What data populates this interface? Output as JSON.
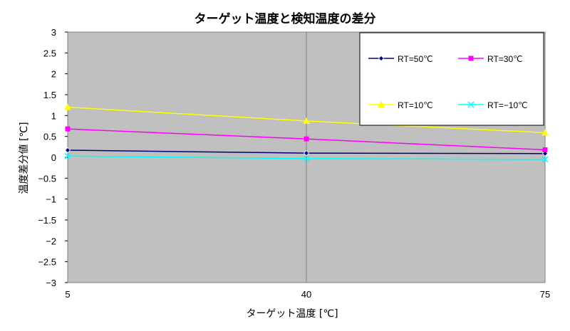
{
  "chart_data": {
    "type": "line",
    "title": "ターゲット温度と検知温度の差分",
    "xlabel": "ターゲット温度 [℃]",
    "ylabel": "温度差分値 [℃]",
    "categories": [
      "5",
      "40",
      "75"
    ],
    "ylim": [
      -3,
      3
    ],
    "yticks": [
      "3",
      "2.5",
      "2",
      "1.5",
      "1",
      "0.5",
      "0",
      "−0.5",
      "−1",
      "−1.5",
      "−2",
      "−2.5",
      "−3"
    ],
    "grid": true,
    "legend_position": "top-right",
    "plot_background": "#c0c0c0",
    "series": [
      {
        "name": "RT=50℃",
        "values": [
          0.17,
          0.1,
          0.09
        ],
        "color": "#000080",
        "marker": "diamond"
      },
      {
        "name": "RT=30℃",
        "values": [
          0.68,
          0.44,
          0.18
        ],
        "color": "#ff00ff",
        "marker": "square"
      },
      {
        "name": "RT=10℃",
        "values": [
          1.2,
          0.87,
          0.59
        ],
        "color": "#ffff00",
        "marker": "triangle"
      },
      {
        "name": "RT=−10℃",
        "values": [
          0.03,
          -0.03,
          -0.05
        ],
        "color": "#00ffff",
        "marker": "x"
      }
    ]
  }
}
